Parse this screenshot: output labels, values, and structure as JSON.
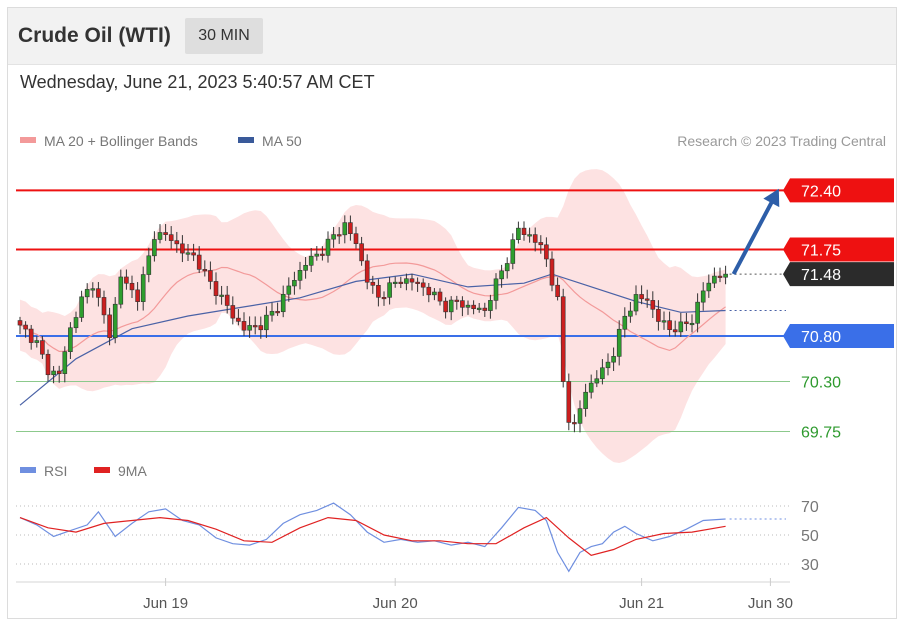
{
  "header": {
    "title": "Crude Oil (WTI)",
    "timeframe": "30 MIN"
  },
  "datetime": "Wednesday, June 21, 2023 5:40:57 AM CET",
  "colors": {
    "resistance": "#ee1111",
    "support_pivot": "#3a6fe8",
    "support_minor": "#8cc98c",
    "support_label": "#2e9a2e",
    "last_price": "#2b2b2b",
    "bollinger": "#fde2e2",
    "ma20": "#f39a9a",
    "ma50": "#4a62a6",
    "arrow": "#2d5ea8",
    "rsi": "#6f8fe0",
    "rsi_ma": "#e02222",
    "candle_up": "#2e9e2e",
    "candle_down": "#cc1f1f"
  },
  "chart_data": [
    {
      "type": "candlestick",
      "legend": [
        {
          "label": "MA 20 + Bollinger Bands",
          "color": "#f39a9a"
        },
        {
          "label": "MA 50",
          "color": "#3a5a9a"
        }
      ],
      "credit": "Research © 2023 Trading Central",
      "ylim": [
        69.6,
        72.6
      ],
      "x_tick_labels": [
        {
          "label": "Jun 19",
          "index": 26
        },
        {
          "label": "Jun 20",
          "index": 67
        },
        {
          "label": "Jun 21",
          "index": 111
        },
        {
          "label": "Jun 30",
          "index": 134
        }
      ],
      "levels": [
        {
          "value": 72.4,
          "label": "72.40",
          "kind": "resistance"
        },
        {
          "value": 71.75,
          "label": "71.75",
          "kind": "resistance"
        },
        {
          "value": 71.48,
          "label": "71.48",
          "kind": "last"
        },
        {
          "value": 70.8,
          "label": "70.80",
          "kind": "pivot"
        },
        {
          "value": 70.3,
          "label": "70.30",
          "kind": "support"
        },
        {
          "value": 69.75,
          "label": "69.75",
          "kind": "support"
        }
      ],
      "anchors": [
        [
          0,
          70.92
        ],
        [
          3,
          70.72
        ],
        [
          5,
          70.42
        ],
        [
          7,
          70.38
        ],
        [
          9,
          70.88
        ],
        [
          11,
          71.2
        ],
        [
          13,
          71.38
        ],
        [
          16,
          70.82
        ],
        [
          18,
          71.45
        ],
        [
          21,
          71.22
        ],
        [
          23,
          71.66
        ],
        [
          24,
          71.92
        ],
        [
          27,
          71.88
        ],
        [
          29,
          71.72
        ],
        [
          31,
          71.68
        ],
        [
          34,
          71.38
        ],
        [
          36,
          71.22
        ],
        [
          38,
          71.02
        ],
        [
          40,
          70.88
        ],
        [
          43,
          70.92
        ],
        [
          46,
          71.12
        ],
        [
          48,
          71.34
        ],
        [
          51,
          71.6
        ],
        [
          54,
          71.74
        ],
        [
          56,
          71.9
        ],
        [
          58,
          72.02
        ],
        [
          60,
          71.82
        ],
        [
          62,
          71.42
        ],
        [
          64,
          71.22
        ],
        [
          66,
          71.34
        ],
        [
          68,
          71.42
        ],
        [
          71,
          71.38
        ],
        [
          74,
          71.24
        ],
        [
          76,
          71.12
        ],
        [
          78,
          71.18
        ],
        [
          80,
          71.12
        ],
        [
          83,
          71.08
        ],
        [
          85,
          71.38
        ],
        [
          87,
          71.65
        ],
        [
          89,
          71.98
        ],
        [
          91,
          71.9
        ],
        [
          93,
          71.78
        ],
        [
          94,
          71.65
        ],
        [
          95,
          71.4
        ],
        [
          96,
          71.18
        ],
        [
          97,
          70.3
        ],
        [
          98,
          69.9
        ],
        [
          99,
          69.8
        ],
        [
          101,
          70.2
        ],
        [
          104,
          70.42
        ],
        [
          106,
          70.62
        ],
        [
          108,
          71.02
        ],
        [
          110,
          71.22
        ],
        [
          112,
          71.2
        ],
        [
          114,
          70.98
        ],
        [
          116,
          70.88
        ],
        [
          118,
          70.9
        ],
        [
          120,
          70.98
        ],
        [
          122,
          71.3
        ],
        [
          124,
          71.46
        ],
        [
          126,
          71.48
        ]
      ],
      "ma50": [
        [
          0,
          70.04
        ],
        [
          10,
          70.55
        ],
        [
          20,
          70.88
        ],
        [
          30,
          71.02
        ],
        [
          40,
          71.12
        ],
        [
          50,
          71.22
        ],
        [
          60,
          71.4
        ],
        [
          70,
          71.48
        ],
        [
          80,
          71.34
        ],
        [
          90,
          71.38
        ],
        [
          95,
          71.48
        ],
        [
          100,
          71.38
        ],
        [
          110,
          71.18
        ],
        [
          118,
          71.06
        ],
        [
          126,
          71.08
        ]
      ],
      "last_price_label": "71.48"
    },
    {
      "type": "line",
      "legend": [
        {
          "label": "RSI",
          "color": "#6f8fe0"
        },
        {
          "label": "9MA",
          "color": "#e02222"
        }
      ],
      "ylim": [
        22,
        78
      ],
      "levels": [
        70,
        50,
        30
      ],
      "level_labels": [
        "70",
        "50",
        "30"
      ],
      "rsi": [
        [
          0,
          62
        ],
        [
          3,
          57
        ],
        [
          6,
          49
        ],
        [
          9,
          53
        ],
        [
          12,
          57
        ],
        [
          14,
          66
        ],
        [
          17,
          49
        ],
        [
          20,
          58
        ],
        [
          23,
          66
        ],
        [
          26,
          68
        ],
        [
          29,
          60
        ],
        [
          32,
          57
        ],
        [
          35,
          48
        ],
        [
          38,
          44
        ],
        [
          41,
          43
        ],
        [
          44,
          47
        ],
        [
          47,
          58
        ],
        [
          50,
          64
        ],
        [
          53,
          67
        ],
        [
          56,
          72
        ],
        [
          59,
          64
        ],
        [
          62,
          52
        ],
        [
          65,
          45
        ],
        [
          68,
          47
        ],
        [
          71,
          45
        ],
        [
          74,
          46
        ],
        [
          77,
          43
        ],
        [
          80,
          45
        ],
        [
          83,
          42
        ],
        [
          86,
          55
        ],
        [
          89,
          69
        ],
        [
          92,
          67
        ],
        [
          94,
          60
        ],
        [
          96,
          38
        ],
        [
          98,
          25
        ],
        [
          100,
          38
        ],
        [
          102,
          42
        ],
        [
          104,
          44
        ],
        [
          106,
          52
        ],
        [
          108,
          56
        ],
        [
          110,
          51
        ],
        [
          113,
          46
        ],
        [
          116,
          49
        ],
        [
          119,
          54
        ],
        [
          122,
          60
        ],
        [
          126,
          61
        ]
      ],
      "rsi_ma": [
        [
          0,
          62
        ],
        [
          5,
          55
        ],
        [
          10,
          52
        ],
        [
          15,
          58
        ],
        [
          20,
          60
        ],
        [
          25,
          62
        ],
        [
          30,
          60
        ],
        [
          35,
          54
        ],
        [
          40,
          46
        ],
        [
          45,
          45
        ],
        [
          50,
          55
        ],
        [
          55,
          62
        ],
        [
          60,
          60
        ],
        [
          65,
          50
        ],
        [
          70,
          46
        ],
        [
          75,
          46
        ],
        [
          80,
          44
        ],
        [
          85,
          44
        ],
        [
          90,
          55
        ],
        [
          94,
          62
        ],
        [
          98,
          48
        ],
        [
          102,
          36
        ],
        [
          106,
          40
        ],
        [
          110,
          47
        ],
        [
          115,
          51
        ],
        [
          120,
          52
        ],
        [
          126,
          56
        ]
      ]
    }
  ]
}
